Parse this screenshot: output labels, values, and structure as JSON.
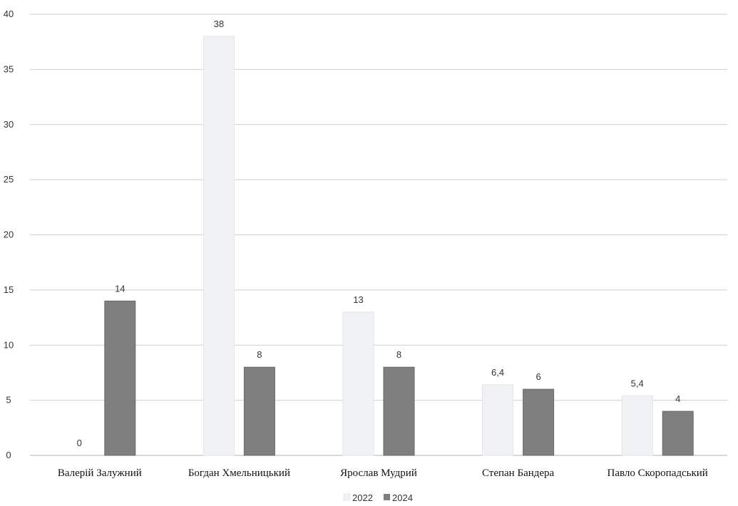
{
  "chart_data": {
    "type": "bar",
    "categories": [
      "Валерій Залужний",
      "Богдан Хмельницький",
      "Ярослав Мудрий",
      "Степан Бандера",
      "Павло Скоропадський"
    ],
    "series": [
      {
        "name": "2022",
        "values": [
          0,
          38,
          13,
          6.4,
          5.4
        ],
        "labels": [
          "0",
          "38",
          "13",
          "6,4",
          "5,4"
        ],
        "color": "#f1f2f4"
      },
      {
        "name": "2024",
        "values": [
          14,
          8,
          8,
          6,
          4
        ],
        "labels": [
          "14",
          "8",
          "8",
          "6",
          "4"
        ],
        "color": "#7f7f7f"
      }
    ],
    "ylim": [
      0,
      40
    ],
    "yticks": [
      0,
      5,
      10,
      15,
      20,
      25,
      30,
      35,
      40
    ],
    "grid": true,
    "legend_position": "bottom"
  }
}
